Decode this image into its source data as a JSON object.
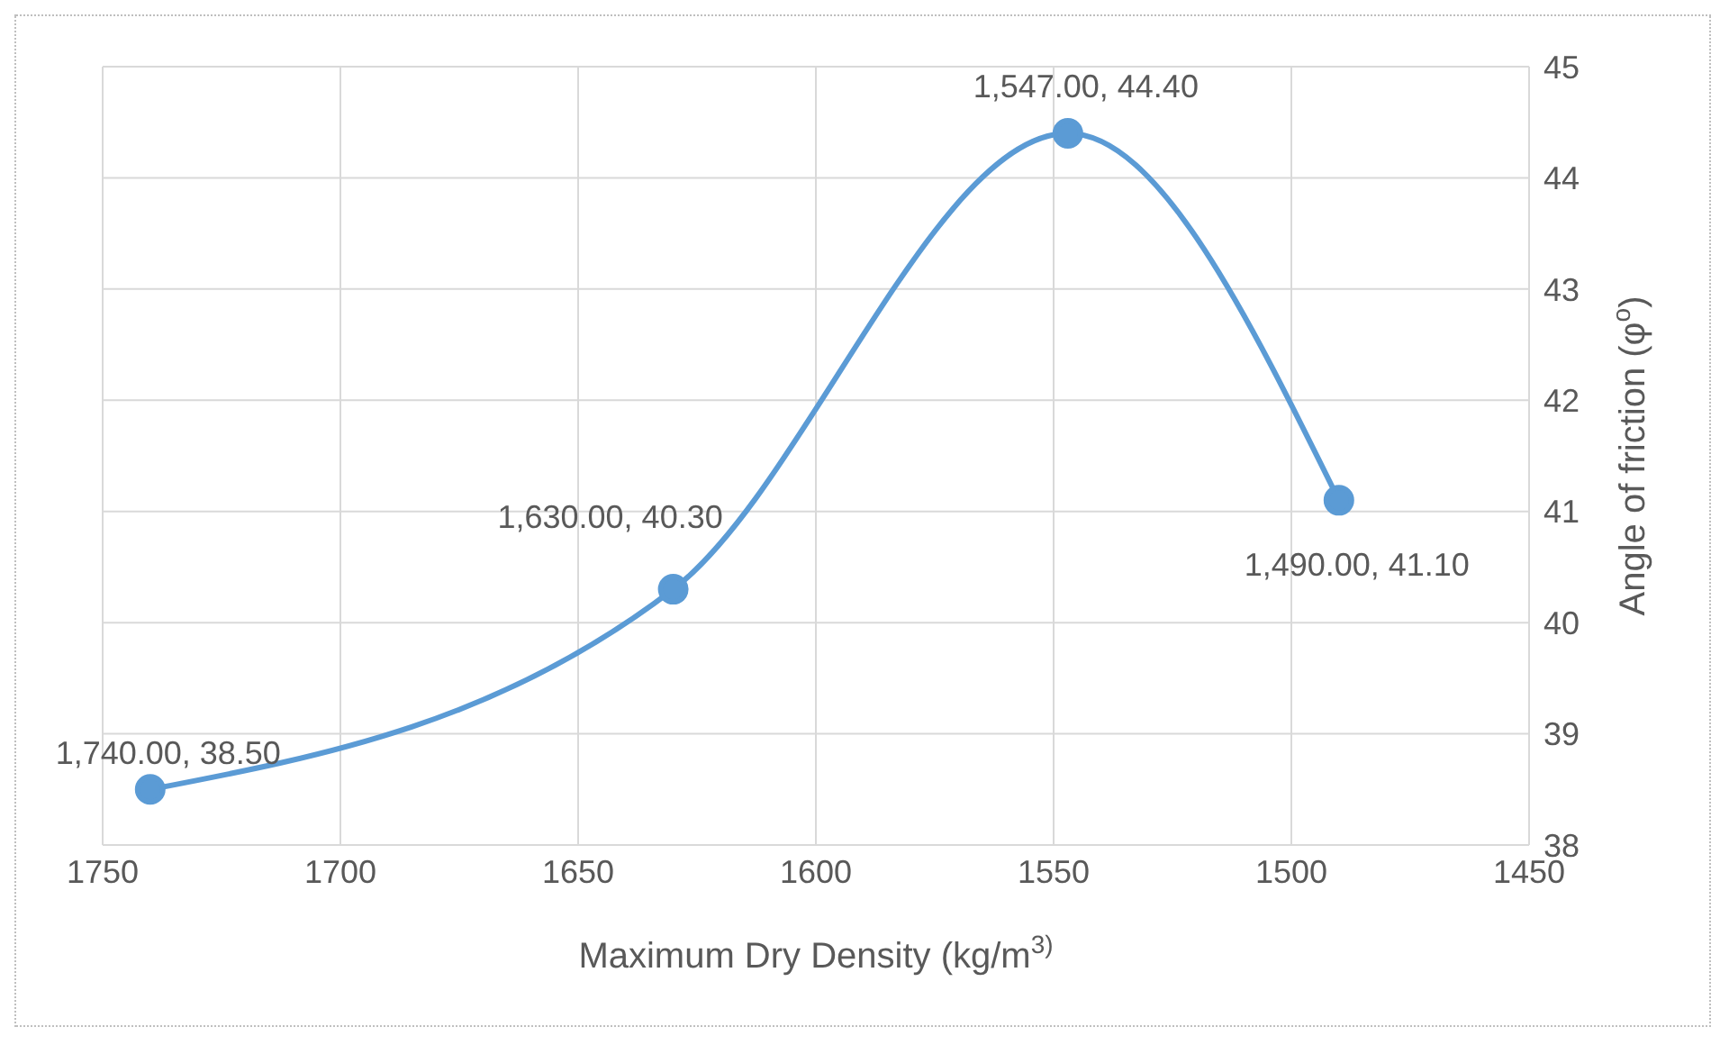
{
  "chart_data": {
    "type": "line",
    "xlabel": "Maximum Dry Density (kg/m$^{3)}$",
    "ylabel": "Angle of friction (φ$^{o}$)",
    "x": [
      1740,
      1630,
      1547,
      1490
    ],
    "series": [
      {
        "color": "#5b9bd5",
        "values": [
          38.5,
          40.3,
          44.4,
          41.1
        ],
        "value_labels": [
          "1,740.00, 38.50",
          "1,630.00, 40.30",
          "1,547.00, 44.40",
          "1,490.00, 41.10"
        ]
      }
    ],
    "xlim": [
      1750,
      1450
    ],
    "xticks": [
      1750,
      1700,
      1650,
      1600,
      1550,
      1500,
      1450
    ],
    "ylim": [
      38,
      45
    ],
    "yticks": [
      38,
      39,
      40,
      41,
      42,
      43,
      44,
      45
    ],
    "grid": true,
    "marker": "circle"
  }
}
